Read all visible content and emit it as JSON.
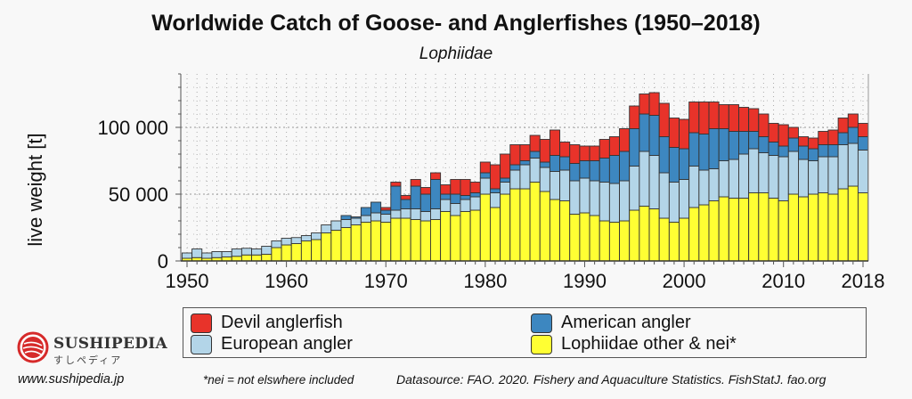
{
  "chart_data": {
    "type": "bar",
    "stacked": true,
    "title": "Worldwide Catch of Goose- and Anglerfishes  (1950–2018)",
    "subtitle": "Lophiidae",
    "xlabel": "",
    "ylabel": "live weight [t]",
    "ylim": [
      0,
      140000
    ],
    "xlim": [
      1950,
      2018
    ],
    "x_ticks": [
      "1950",
      "1960",
      "1970",
      "1980",
      "1990",
      "2000",
      "2010",
      "2018"
    ],
    "y_ticks": [
      {
        "value": 0,
        "label": "0"
      },
      {
        "value": 50000,
        "label": "50 000"
      },
      {
        "value": 100000,
        "label": "100 000"
      }
    ],
    "grid": true,
    "legend_position": "bottom",
    "unit_multiplier": 1000,
    "categories": [
      1950,
      1951,
      1952,
      1953,
      1954,
      1955,
      1956,
      1957,
      1958,
      1959,
      1960,
      1961,
      1962,
      1963,
      1964,
      1965,
      1966,
      1967,
      1968,
      1969,
      1970,
      1971,
      1972,
      1973,
      1974,
      1975,
      1976,
      1977,
      1978,
      1979,
      1980,
      1981,
      1982,
      1983,
      1984,
      1985,
      1986,
      1987,
      1988,
      1989,
      1990,
      1991,
      1992,
      1993,
      1994,
      1995,
      1996,
      1997,
      1998,
      1999,
      2000,
      2001,
      2002,
      2003,
      2004,
      2005,
      2006,
      2007,
      2008,
      2009,
      2010,
      2011,
      2012,
      2013,
      2014,
      2015,
      2016,
      2017,
      2018
    ],
    "series": [
      {
        "name": "Lophiidae other & nei*",
        "color": "#ffff33",
        "values": [
          2,
          2.5,
          2,
          2.5,
          3,
          3.5,
          4.5,
          4.5,
          5,
          10,
          12,
          13,
          15,
          16,
          21,
          23,
          25,
          27,
          29,
          30,
          29,
          32,
          32,
          31,
          30,
          31,
          37,
          34,
          37,
          38,
          50,
          40,
          50,
          54,
          54,
          59,
          52,
          46,
          45,
          35,
          36,
          34,
          30,
          29,
          30,
          38,
          41,
          39,
          32,
          29,
          32,
          40,
          42,
          45,
          48,
          47,
          47,
          51,
          51,
          47,
          45,
          50,
          48,
          50,
          51,
          50,
          54,
          56,
          51
        ]
      },
      {
        "name": "European angler",
        "color": "#b3d5e8",
        "values": [
          4,
          6.5,
          4,
          4.5,
          4,
          5.5,
          5,
          4.5,
          6,
          5,
          5,
          4.5,
          4,
          5,
          6,
          7,
          6,
          5,
          5,
          6,
          6,
          6,
          7,
          8,
          7,
          8,
          9,
          9,
          9,
          10,
          12,
          11,
          9,
          14,
          18,
          18,
          18,
          21,
          23,
          25,
          26,
          26,
          29,
          29,
          30,
          33,
          41,
          40,
          34,
          30,
          29,
          31,
          26,
          24,
          27,
          29,
          33,
          33,
          30,
          32,
          33,
          32,
          28,
          25,
          27,
          28,
          33,
          32,
          32
        ]
      },
      {
        "name": "American angler",
        "color": "#3d87c0",
        "values": [
          0,
          0,
          0,
          0,
          0,
          0,
          0,
          0,
          0,
          0,
          0,
          0,
          0,
          0,
          0,
          0,
          3,
          1,
          6,
          8,
          3,
          18,
          7,
          17,
          13,
          22,
          4,
          7,
          3,
          3,
          4,
          3,
          3,
          4,
          3,
          5,
          4,
          12,
          10,
          13,
          13,
          15,
          18,
          21,
          22,
          28,
          28,
          30,
          27,
          26,
          23,
          25,
          27,
          30,
          24,
          21,
          17,
          13,
          12,
          10,
          8,
          10,
          10,
          9,
          9,
          9,
          9,
          12,
          10
        ]
      },
      {
        "name": "Devil anglerfish",
        "color": "#e8332a",
        "values": [
          0,
          0,
          0,
          0,
          0,
          0,
          0,
          0,
          0,
          0,
          0,
          0,
          0,
          0,
          0,
          0,
          0,
          0,
          0,
          0,
          2,
          3,
          3,
          5,
          5,
          5,
          7,
          11,
          12,
          8,
          8,
          18,
          18,
          15,
          12,
          12,
          17,
          19,
          11,
          14,
          11,
          11,
          14,
          14,
          17,
          17,
          15,
          17,
          25,
          22,
          22,
          23,
          24,
          20,
          18,
          20,
          18,
          17,
          17,
          14,
          16,
          8,
          7,
          8,
          10,
          11,
          11,
          10,
          10
        ]
      }
    ]
  },
  "legend": {
    "devil": "Devil anglerfish",
    "american": "American angler",
    "european": "European angler",
    "other": "Lophiidae other & nei*"
  },
  "footer": {
    "brand": "Sushipedia",
    "brand_sub": "すしペディア",
    "website": "www.sushipedia.jp",
    "note": "*nei = not elswhere included",
    "source": "Datasource: FAO. 2020. Fishery and Aquaculture Statistics. FishStatJ. fao.org"
  }
}
